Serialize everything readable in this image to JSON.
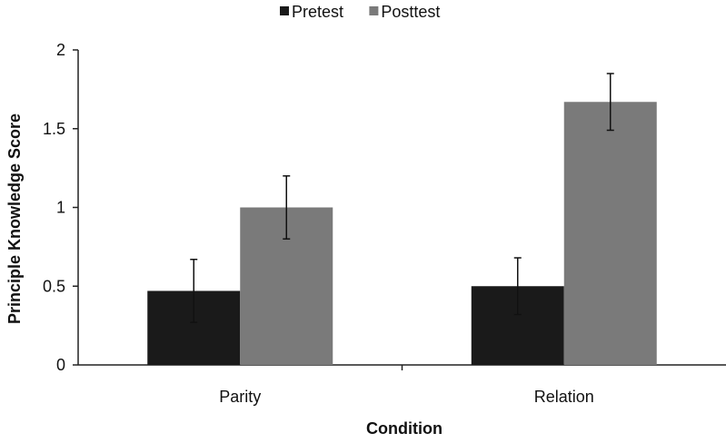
{
  "chart_data": {
    "type": "bar",
    "title": "",
    "xlabel": "Condition",
    "ylabel": "Principle Knowledge Score",
    "categories": [
      "Parity",
      "Relation"
    ],
    "ylim": [
      0,
      2
    ],
    "yticks": [
      "0",
      "0.5",
      "1",
      "1.5",
      "2"
    ],
    "legend_position": "top",
    "grid": false,
    "series": [
      {
        "name": "Pretest",
        "color": "#1a1a1a",
        "values": [
          0.47,
          0.5
        ],
        "error": [
          0.2,
          0.18
        ]
      },
      {
        "name": "Posttest",
        "color": "#7a7a7a",
        "values": [
          1.0,
          1.67
        ],
        "error": [
          0.2,
          0.18
        ]
      }
    ]
  }
}
